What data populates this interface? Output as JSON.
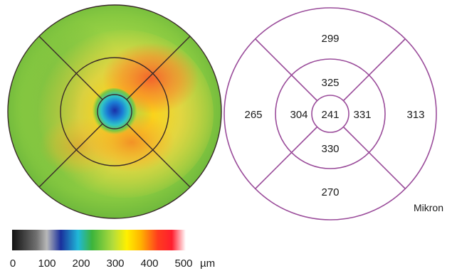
{
  "thickness_map": {
    "sectors": {
      "center": "241",
      "inner_superior": "325",
      "inner_nasal": "331",
      "inner_inferior": "330",
      "inner_temporal": "304",
      "outer_superior": "299",
      "outer_nasal": "313",
      "outer_inferior": "270",
      "outer_temporal": "265"
    },
    "unit_label": "Mikron",
    "colors": {
      "grid_right": "#9a4c9a",
      "grid_left": "#3a2a2a"
    }
  },
  "colorbar": {
    "ticks": [
      "0",
      "100",
      "200",
      "300",
      "400",
      "500"
    ],
    "unit": "µm",
    "stops": [
      {
        "offset": 0.0,
        "color": "#111111"
      },
      {
        "offset": 0.14,
        "color": "#707070"
      },
      {
        "offset": 0.2,
        "color": "#b8b8b8"
      },
      {
        "offset": 0.28,
        "color": "#1a2f9c"
      },
      {
        "offset": 0.38,
        "color": "#20b8d8"
      },
      {
        "offset": 0.46,
        "color": "#3cb43c"
      },
      {
        "offset": 0.58,
        "color": "#b2dc3c"
      },
      {
        "offset": 0.66,
        "color": "#fff000"
      },
      {
        "offset": 0.74,
        "color": "#ffb400"
      },
      {
        "offset": 0.84,
        "color": "#ff3c1e"
      },
      {
        "offset": 0.92,
        "color": "#ff1e2e"
      },
      {
        "offset": 1.0,
        "color": "#ffffff"
      }
    ]
  }
}
